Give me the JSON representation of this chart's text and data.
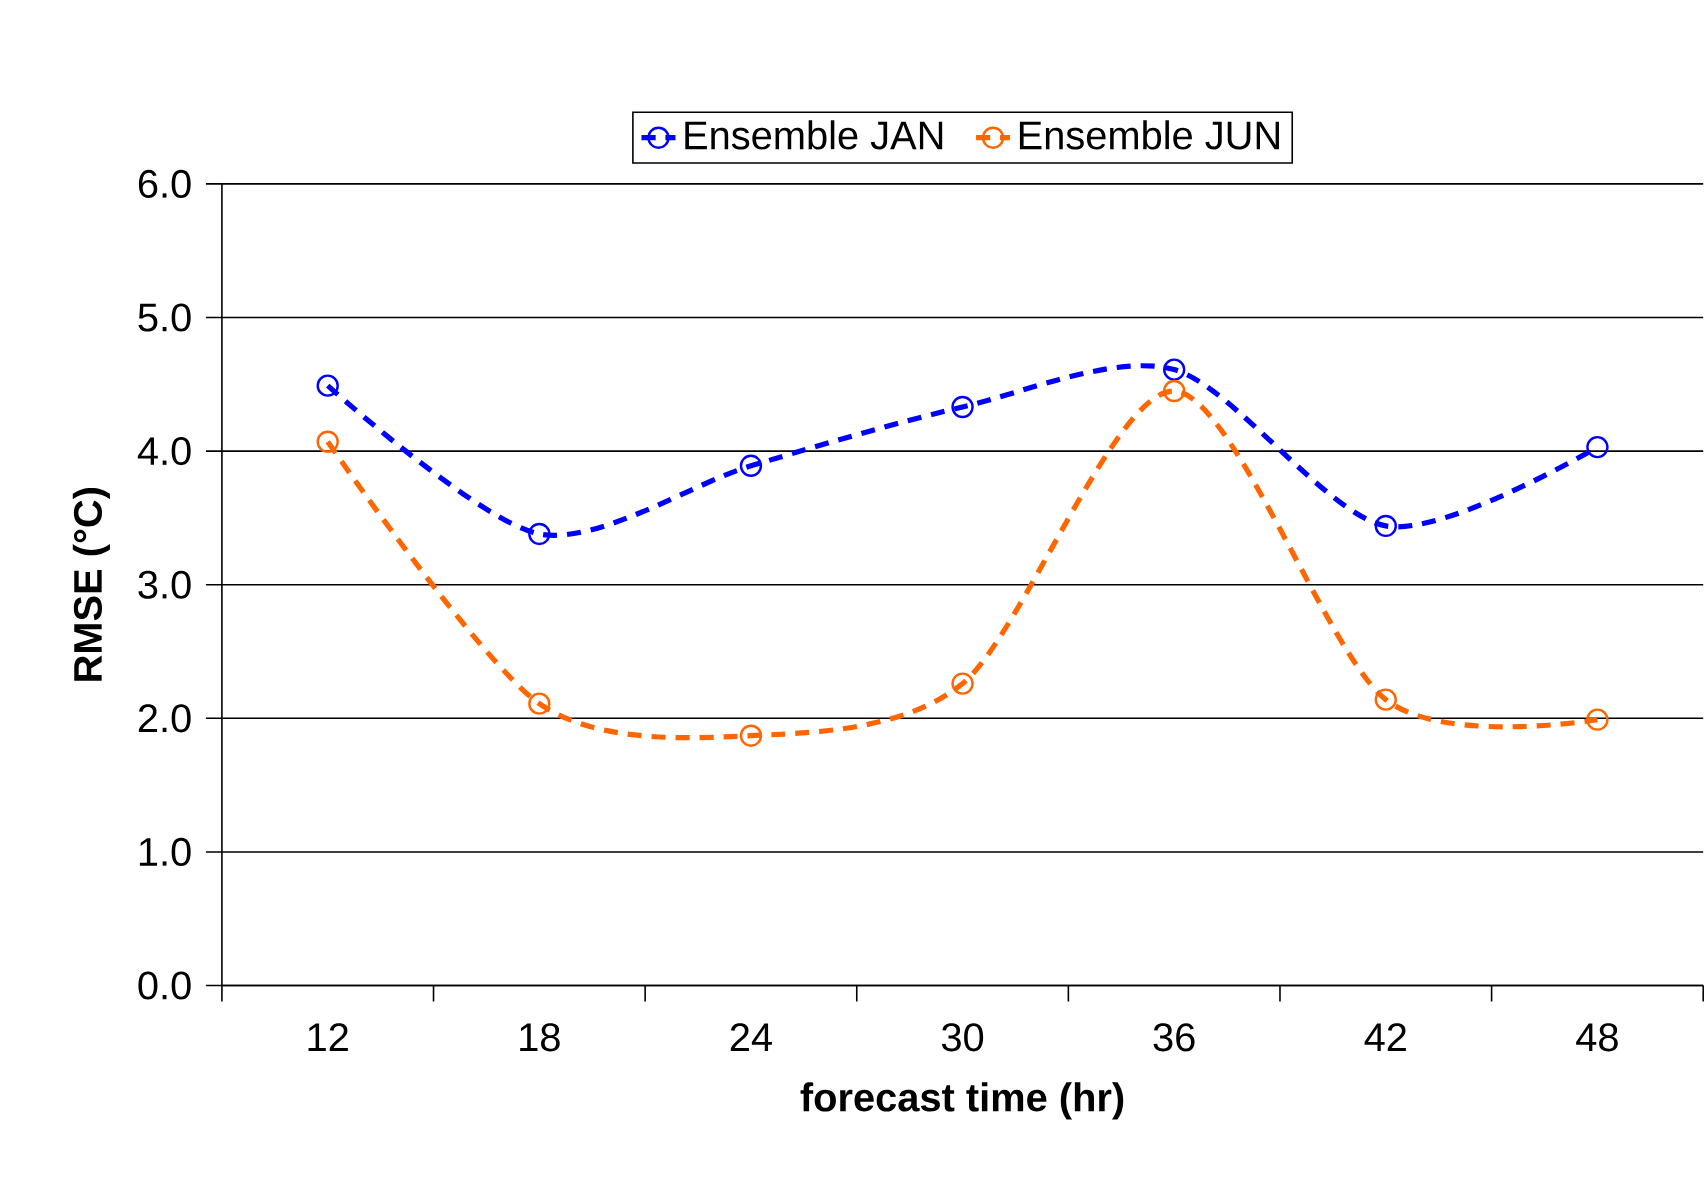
{
  "chart_data": {
    "type": "line",
    "xlabel": "forecast time (hr)",
    "ylabel": "RMSE (°C)",
    "categories": [
      "12",
      "18",
      "24",
      "30",
      "36",
      "42",
      "48"
    ],
    "series": [
      {
        "name": "Ensemble JAN",
        "color": "#0000ff",
        "values": [
          4.49,
          3.38,
          3.89,
          4.33,
          4.61,
          3.44,
          4.03
        ]
      },
      {
        "name": "Ensemble JUN",
        "color": "#ff6600",
        "values": [
          4.07,
          2.11,
          1.87,
          2.26,
          4.45,
          2.14,
          1.99
        ]
      }
    ],
    "ylim": [
      0,
      6
    ],
    "yticks": [
      {
        "value": 0,
        "label": "0.0"
      },
      {
        "value": 1,
        "label": "1.0"
      },
      {
        "value": 2,
        "label": "2.0"
      },
      {
        "value": 3,
        "label": "3.0"
      },
      {
        "value": 4,
        "label": "4.0"
      },
      {
        "value": 5,
        "label": "5.0"
      },
      {
        "value": 6,
        "label": "6.0"
      }
    ],
    "grid": "y",
    "legend": "top",
    "marker": "circle",
    "line_style": "dashed"
  }
}
